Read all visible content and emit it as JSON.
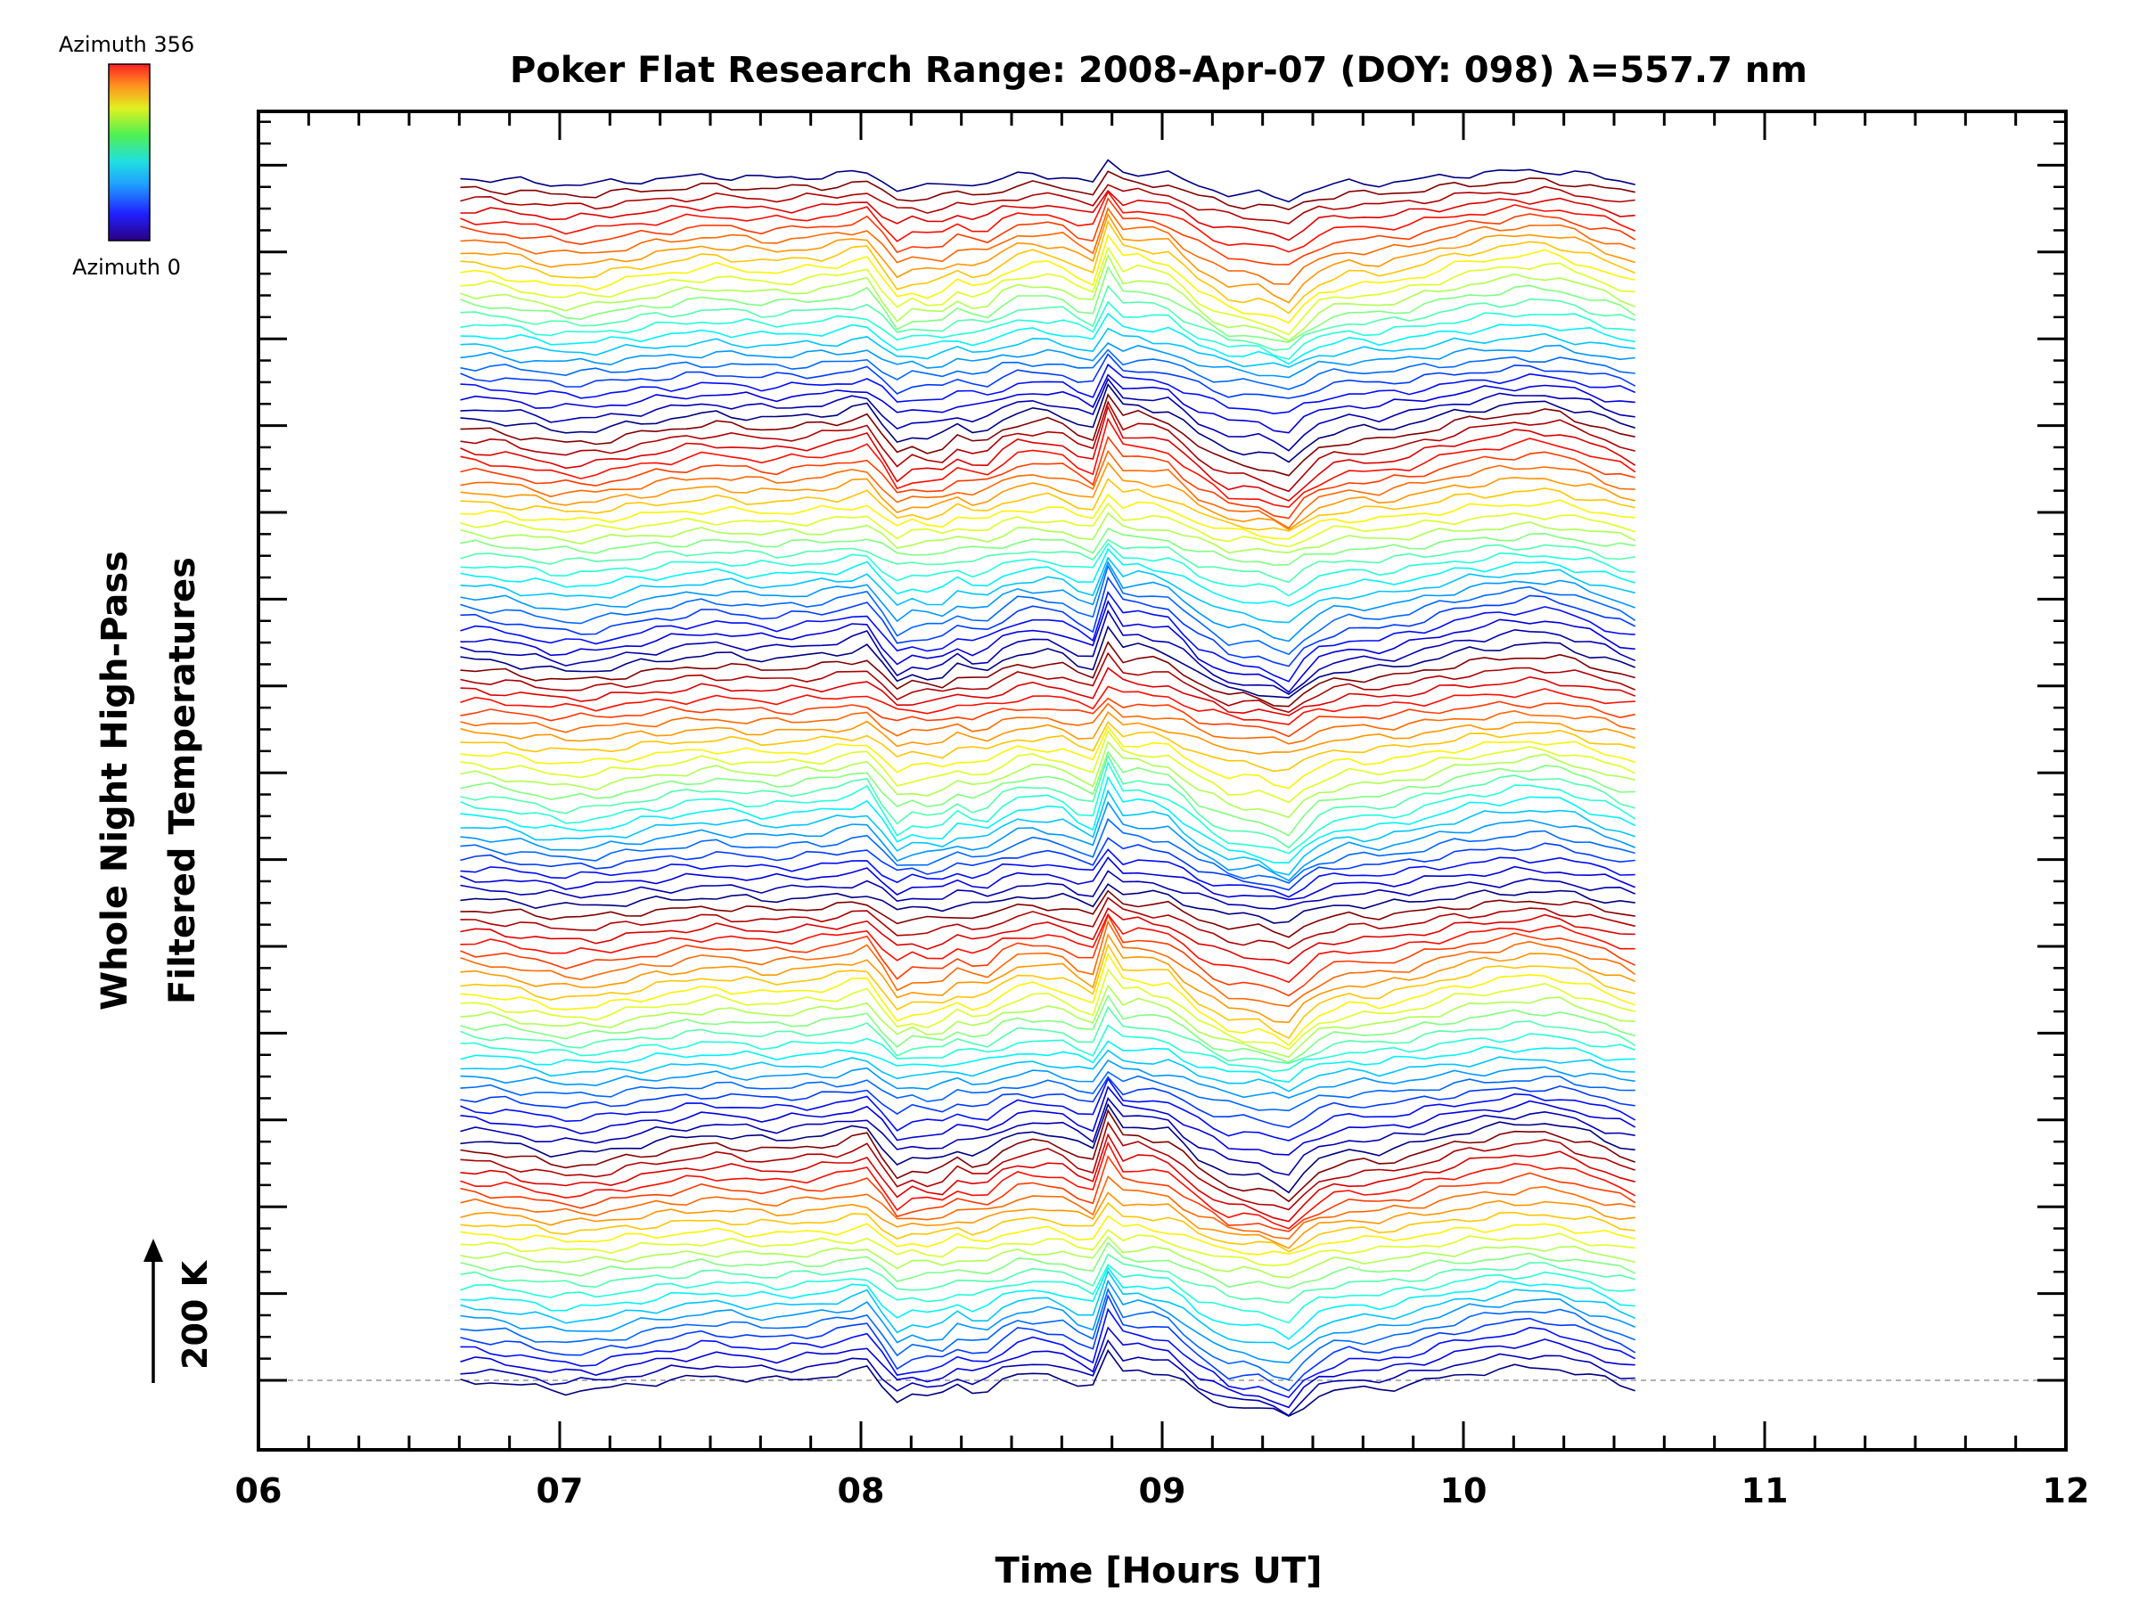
{
  "chart_data": {
    "type": "line",
    "title": "Poker Flat Research Range: 2008-Apr-07 (DOY: 098) λ=557.7 nm",
    "xlabel": "Time [Hours UT]",
    "ylabel_line1": "Whole Night High-Pass",
    "ylabel_line2": "Filtered Temperatures",
    "xlim": [
      6,
      12
    ],
    "xtick_labels": [
      "06",
      "07",
      "08",
      "09",
      "10",
      "11",
      "12"
    ],
    "scale_bar_label": "200 K",
    "colorbar": {
      "top_label": "Azimuth 356",
      "bottom_label": "Azimuth 0"
    },
    "n_traces": 116,
    "time_range": [
      6.67,
      10.58
    ],
    "grid": false,
    "baseline_dashed": true
  }
}
